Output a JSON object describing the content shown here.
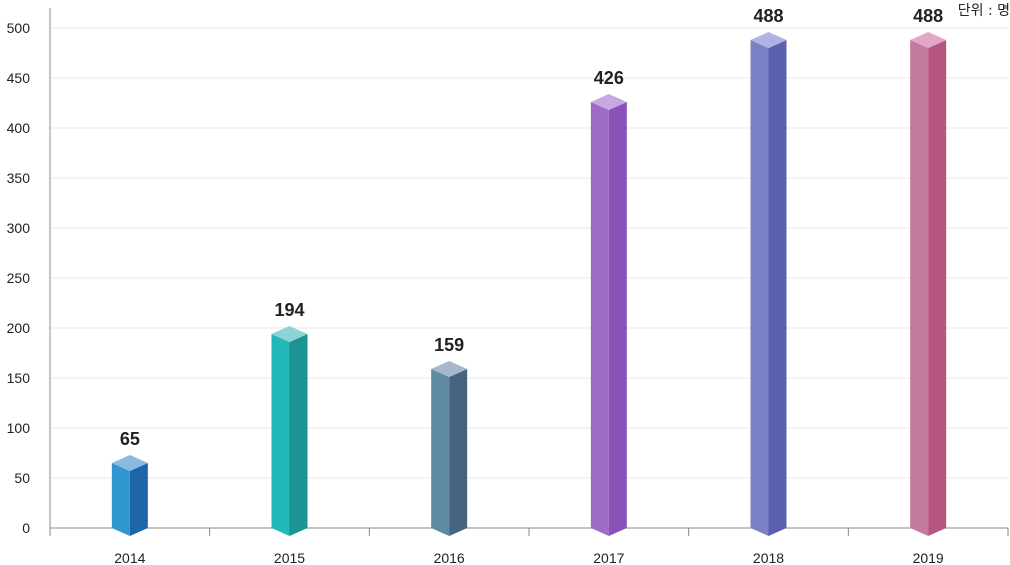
{
  "unit_label": "단위 : 명",
  "chart_data": {
    "type": "bar",
    "title": "",
    "xlabel": "",
    "ylabel": "",
    "categories": [
      "2014",
      "2015",
      "2016",
      "2017",
      "2018",
      "2019"
    ],
    "values": [
      65,
      194,
      159,
      426,
      488,
      488
    ],
    "data_labels": [
      "65",
      "194",
      "159",
      "426",
      "488",
      "488"
    ],
    "ylim": [
      0,
      500
    ],
    "yticks": [
      0,
      50,
      100,
      150,
      200,
      250,
      300,
      350,
      400,
      450,
      500
    ],
    "ytick_labels": [
      "0",
      "50",
      "100",
      "150",
      "200",
      "250",
      "300",
      "350",
      "400",
      "450",
      "500"
    ],
    "grid": true,
    "bar_colors": [
      {
        "front": "#2f96cf",
        "side": "#1f66a6",
        "top": "#8ab9e3"
      },
      {
        "front": "#23b8b8",
        "side": "#1a9494",
        "top": "#8ed2d6"
      },
      {
        "front": "#5f8aa0",
        "side": "#46647f",
        "top": "#a6b7c7"
      },
      {
        "front": "#9b6cc3",
        "side": "#8a52b8",
        "top": "#c9a7e3"
      },
      {
        "front": "#7a82c5",
        "side": "#5a62b0",
        "top": "#aeb3e3"
      },
      {
        "front": "#c47a9c",
        "side": "#b6557f",
        "top": "#e3a7c9"
      }
    ]
  }
}
